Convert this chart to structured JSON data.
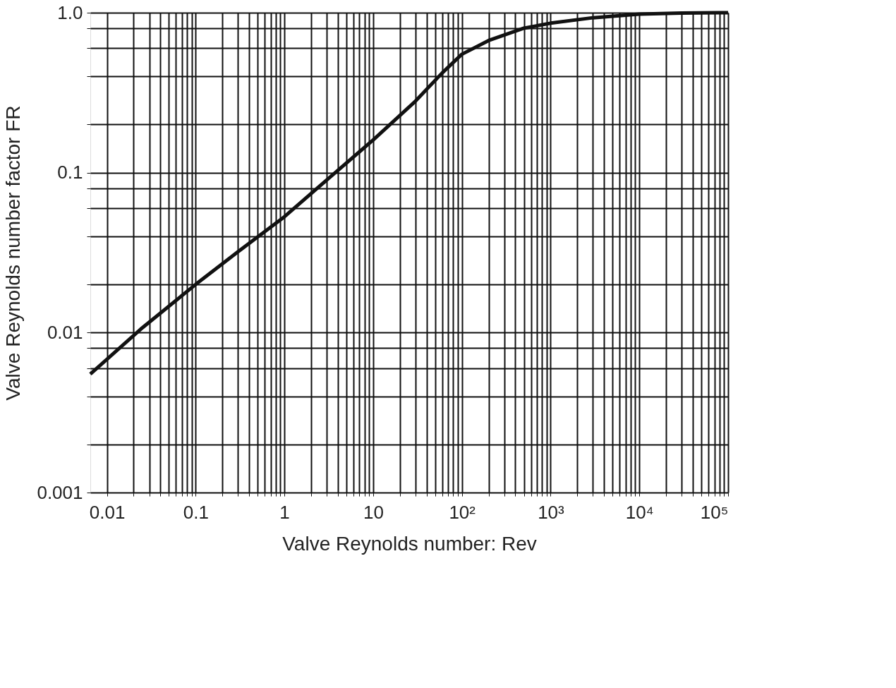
{
  "chart_data": {
    "type": "line",
    "xlabel": "Valve Reynolds number: Rev",
    "ylabel": "Valve Reynolds number factor FR",
    "log": "xy",
    "grid": true,
    "legend": false,
    "marker": "none",
    "line_style": "solid",
    "xlim": [
      0.0065,
      100000
    ],
    "ylim": [
      0.001,
      1
    ],
    "xticks": [
      0.01,
      {
        "value": 0.02,
        "label": null
      },
      {
        "value": 0.03,
        "label": null
      },
      {
        "value": 0.04,
        "label": null
      },
      {
        "value": 0.05,
        "label": null
      },
      {
        "value": 0.06,
        "label": null
      },
      {
        "value": 0.07,
        "label": null
      },
      {
        "value": 0.08,
        "label": null
      },
      {
        "value": 0.09,
        "label": null
      },
      0.1,
      {
        "value": 0.2,
        "label": null
      },
      {
        "value": 0.3,
        "label": null
      },
      {
        "value": 0.4,
        "label": null
      },
      {
        "value": 0.5,
        "label": null
      },
      {
        "value": 0.6,
        "label": null
      },
      {
        "value": 0.7,
        "label": null
      },
      {
        "value": 0.8,
        "label": null
      },
      {
        "value": 0.9,
        "label": null
      },
      1,
      {
        "value": 2,
        "label": null
      },
      {
        "value": 3,
        "label": null
      },
      {
        "value": 4,
        "label": null
      },
      {
        "value": 5,
        "label": null
      },
      {
        "value": 6,
        "label": null
      },
      {
        "value": 7,
        "label": null
      },
      {
        "value": 8,
        "label": null
      },
      {
        "value": 9,
        "label": null
      },
      10,
      {
        "value": 20,
        "label": null
      },
      {
        "value": 30,
        "label": null
      },
      {
        "value": 40,
        "label": null
      },
      {
        "value": 50,
        "label": null
      },
      {
        "value": 60,
        "label": null
      },
      {
        "value": 70,
        "label": null
      },
      {
        "value": 80,
        "label": null
      },
      {
        "value": 90,
        "label": null
      },
      {
        "value": 100,
        "label": "10²"
      },
      {
        "value": 200,
        "label": null
      },
      {
        "value": 300,
        "label": null
      },
      {
        "value": 400,
        "label": null
      },
      {
        "value": 500,
        "label": null
      },
      {
        "value": 600,
        "label": null
      },
      {
        "value": 700,
        "label": null
      },
      {
        "value": 800,
        "label": null
      },
      {
        "value": 900,
        "label": null
      },
      {
        "value": 1000,
        "label": "10³"
      },
      {
        "value": 2000,
        "label": null
      },
      {
        "value": 3000,
        "label": null
      },
      {
        "value": 4000,
        "label": null
      },
      {
        "value": 5000,
        "label": null
      },
      {
        "value": 6000,
        "label": null
      },
      {
        "value": 7000,
        "label": null
      },
      {
        "value": 8000,
        "label": null
      },
      {
        "value": 9000,
        "label": null
      },
      {
        "value": 10000,
        "label": "10⁴"
      },
      {
        "value": 20000,
        "label": null
      },
      {
        "value": 30000,
        "label": null
      },
      {
        "value": 40000,
        "label": null
      },
      {
        "value": 50000,
        "label": null
      },
      {
        "value": 60000,
        "label": null
      },
      {
        "value": 70000,
        "label": null
      },
      {
        "value": 80000,
        "label": null
      },
      {
        "value": 90000,
        "label": null
      },
      {
        "value": 100000,
        "label": "10⁵"
      }
    ],
    "yticks": [
      0.001,
      {
        "value": 0.002,
        "label": null
      },
      {
        "value": 0.004,
        "label": null
      },
      {
        "value": 0.006,
        "label": null
      },
      {
        "value": 0.008,
        "label": null
      },
      0.01,
      {
        "value": 0.02,
        "label": null
      },
      {
        "value": 0.04,
        "label": null
      },
      {
        "value": 0.06,
        "label": null
      },
      {
        "value": 0.08,
        "label": null
      },
      0.1,
      {
        "value": 0.2,
        "label": null
      },
      {
        "value": 0.4,
        "label": null
      },
      {
        "value": 0.6,
        "label": null
      },
      {
        "value": 0.8,
        "label": null
      },
      {
        "value": 1,
        "label": "1.0"
      }
    ],
    "series": [
      {
        "color": "#111111",
        "x": [
          0.0065,
          0.024,
          0.1,
          0.3,
          1,
          3,
          10,
          30,
          60,
          100,
          200,
          500,
          1000,
          3000,
          10000,
          30000,
          100000
        ],
        "values": [
          0.0055,
          0.0105,
          0.02,
          0.032,
          0.053,
          0.09,
          0.16,
          0.28,
          0.42,
          0.55,
          0.67,
          0.8,
          0.86,
          0.93,
          0.98,
          0.995,
          1.0
        ]
      }
    ]
  }
}
